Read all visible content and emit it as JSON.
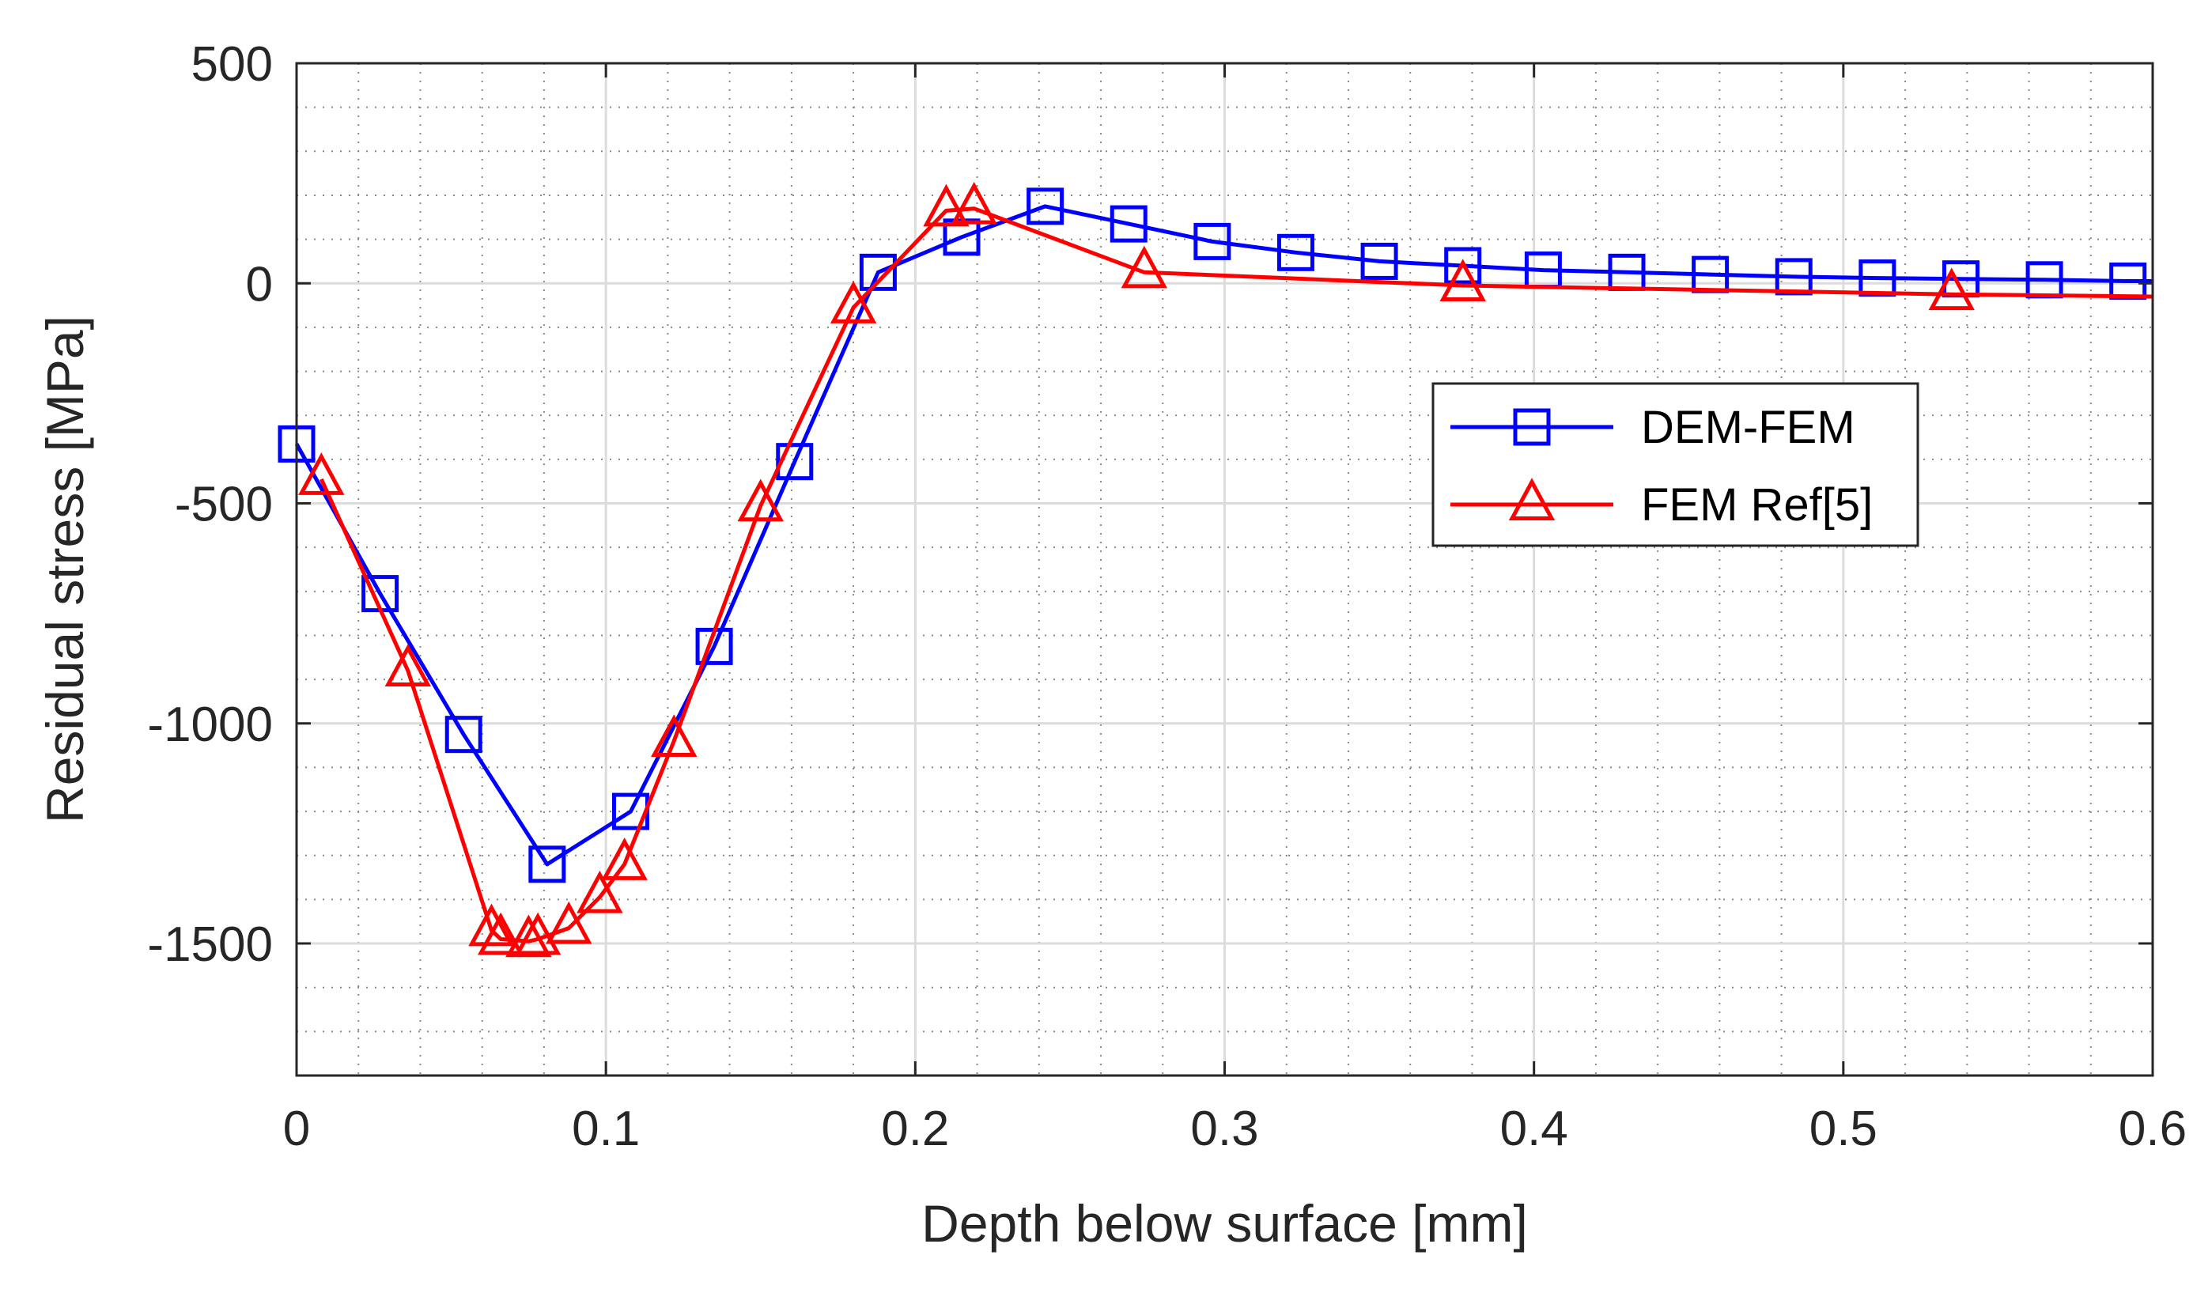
{
  "chart_data": {
    "type": "line",
    "title": "",
    "xlabel": "Depth below surface [mm]",
    "ylabel": "Residual stress [MPa]",
    "xlim": [
      0,
      0.6
    ],
    "ylim": [
      -1800,
      500
    ],
    "xticks": [
      0,
      0.1,
      0.2,
      0.3,
      0.4,
      0.5,
      0.6
    ],
    "xtick_labels": [
      "0",
      "0.1",
      "0.2",
      "0.3",
      "0.4",
      "0.5",
      "0.6"
    ],
    "yticks": [
      -1500,
      -1000,
      -500,
      0,
      500
    ],
    "ytick_labels": [
      "-1500",
      "-1000",
      "-500",
      "0",
      "500"
    ],
    "grid": true,
    "minor_grid": true,
    "legend_position": "center-right",
    "series": [
      {
        "name": "DEM-FEM",
        "color": "#0000FF",
        "marker": "square",
        "x": [
          0.0,
          0.027,
          0.054,
          0.081,
          0.108,
          0.135,
          0.161,
          0.188,
          0.215,
          0.242,
          0.269,
          0.296,
          0.323,
          0.35,
          0.377,
          0.403,
          0.43,
          0.457,
          0.484,
          0.511,
          0.538,
          0.565,
          0.592
        ],
        "y": [
          -365,
          -705,
          -1025,
          -1320,
          -1200,
          -825,
          -405,
          25,
          105,
          175,
          135,
          95,
          70,
          50,
          40,
          30,
          25,
          20,
          15,
          12,
          10,
          8,
          5
        ],
        "line_x": [
          0.0,
          0.027,
          0.054,
          0.081,
          0.108,
          0.135,
          0.161,
          0.188,
          0.215,
          0.242,
          0.269,
          0.296,
          0.323,
          0.35,
          0.377,
          0.403,
          0.43,
          0.457,
          0.484,
          0.511,
          0.538,
          0.565,
          0.592,
          0.6
        ],
        "line_y": [
          -365,
          -705,
          -1025,
          -1320,
          -1200,
          -825,
          -405,
          25,
          105,
          175,
          135,
          95,
          70,
          50,
          40,
          30,
          25,
          20,
          15,
          12,
          10,
          8,
          5,
          5
        ]
      },
      {
        "name": "FEM Ref[5]",
        "color": "#FF0000",
        "marker": "triangle",
        "x": [
          0.008,
          0.036,
          0.063,
          0.066,
          0.075,
          0.078,
          0.088,
          0.098,
          0.106,
          0.122,
          0.15,
          0.18,
          0.21,
          0.219,
          0.274,
          0.377,
          0.535
        ],
        "y": [
          -445,
          -880,
          -1470,
          -1490,
          -1495,
          -1490,
          -1465,
          -1395,
          -1320,
          -1040,
          -505,
          -55,
          165,
          170,
          25,
          -5,
          -25
        ],
        "line_x": [
          0.008,
          0.036,
          0.063,
          0.066,
          0.075,
          0.078,
          0.088,
          0.098,
          0.106,
          0.122,
          0.15,
          0.18,
          0.21,
          0.219,
          0.274,
          0.377,
          0.535,
          0.6
        ],
        "line_y": [
          -445,
          -880,
          -1470,
          -1490,
          -1495,
          -1490,
          -1465,
          -1395,
          -1320,
          -1040,
          -505,
          -55,
          165,
          170,
          25,
          -5,
          -25,
          -30
        ]
      }
    ]
  }
}
